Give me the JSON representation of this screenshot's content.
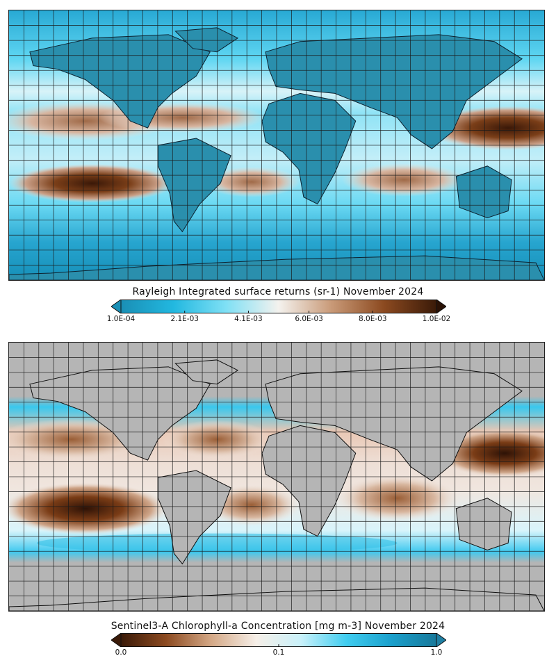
{
  "panels": [
    {
      "id": "rayleigh",
      "colorbar": {
        "title": "Rayleigh Integrated surface returns (sr-1) November 2024",
        "ticks": [
          "1.0E-04",
          "2.1E-03",
          "4.1E-03",
          "6.0E-03",
          "8.0E-03",
          "1.0E-02"
        ],
        "tick_values": [
          0.0001,
          0.0021,
          0.0041,
          0.006,
          0.008,
          0.01
        ],
        "range": [
          0.0001,
          0.01
        ],
        "scale": "linear",
        "colors": [
          "#1a8fb5",
          "#22b8e0",
          "#7fe0f5",
          "#f4f2ee",
          "#c99a78",
          "#8c4a20",
          "#3a1a08"
        ],
        "extend_left_color": "#1a8fb5",
        "extend_right_color": "#2a1206"
      },
      "land_color": "#2a8fad",
      "ocean_base_color": "#3fc7ec"
    },
    {
      "id": "chlorophyll",
      "colorbar": {
        "title": "Sentinel3-A Chlorophyll-a Concentration [mg m-3] November 2024",
        "ticks": [
          "0.0",
          "0.1",
          "1.0"
        ],
        "tick_values": [
          0.0,
          0.1,
          1.0
        ],
        "range": [
          0.0,
          1.0
        ],
        "scale": "log",
        "colors": [
          "#3a1a08",
          "#8c4a20",
          "#d4a886",
          "#f6efe8",
          "#c9f1fa",
          "#40cdf0",
          "#1aa0cc",
          "#17789a"
        ],
        "extend_left_color": "#3a1a08",
        "extend_right_color": "#1f7fa3"
      },
      "land_color": "#b5b5b5",
      "ocean_base_color": "#bfeffb"
    }
  ]
}
